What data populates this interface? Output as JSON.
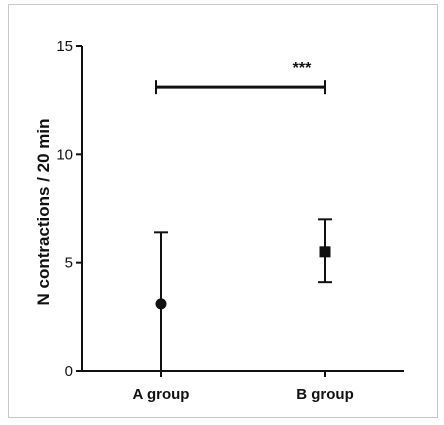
{
  "chart_data": {
    "type": "scatter",
    "title": "",
    "ylabel": "N contractions / 20 min",
    "xlabel": "",
    "ylim": [
      0,
      15
    ],
    "yticks": [
      0,
      5,
      10,
      15
    ],
    "categories": [
      "A group",
      "B group"
    ],
    "points": [
      {
        "category": "A group",
        "value": 3.1,
        "error_low": 0,
        "error_high": 6.4,
        "marker": "circle"
      },
      {
        "category": "B group",
        "value": 5.5,
        "error_low": 4.1,
        "error_high": 7.0,
        "marker": "square"
      }
    ],
    "annotation": {
      "text": "***",
      "from": "A group",
      "to": "B group",
      "y": 13.1
    },
    "colors": {
      "marker": "#111111",
      "axis": "#111111"
    }
  }
}
